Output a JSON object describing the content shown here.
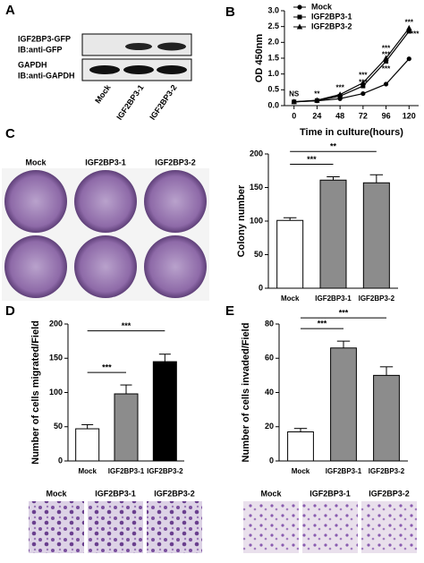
{
  "chart_data": [
    {
      "type": "line",
      "panel": "B",
      "y_label": "OD 450nm",
      "x_label": "Time in culture(hours)",
      "x": [
        0,
        24,
        48,
        72,
        96,
        120
      ],
      "xlim": [
        -10,
        130
      ],
      "xticks": [
        0,
        24,
        48,
        72,
        96,
        120
      ],
      "ylim": [
        0,
        3
      ],
      "yticks": [
        {
          "value": 0,
          "label": "0.0"
        },
        {
          "value": 0.5,
          "label": "0.5"
        },
        {
          "value": 1,
          "label": "1.0"
        },
        {
          "value": 1.5,
          "label": "1.5"
        },
        {
          "value": 2,
          "label": "2.0"
        },
        {
          "value": 2.5,
          "label": "2.5"
        },
        {
          "value": 3,
          "label": "3.0"
        }
      ],
      "legend": "upper-left",
      "series": [
        {
          "name": "Mock",
          "color": "#000000",
          "marker": "circle",
          "values": [
            0.12,
            0.15,
            0.22,
            0.38,
            0.68,
            1.48
          ]
        },
        {
          "name": "IGF2BP3-1",
          "color": "#000000",
          "marker": "square",
          "values": [
            0.12,
            0.16,
            0.3,
            0.62,
            1.4,
            2.35
          ]
        },
        {
          "name": "IGF2BP3-2",
          "color": "#000000",
          "marker": "triangle",
          "values": [
            0.12,
            0.17,
            0.35,
            0.72,
            1.5,
            2.45
          ]
        }
      ],
      "annotations": [
        {
          "text": "NS",
          "x": 0,
          "y": 0.35
        },
        {
          "text": "**",
          "x": 24,
          "y": 0.35
        },
        {
          "text": "***",
          "x": 48,
          "y": 0.55
        },
        {
          "text": "***",
          "x": 72,
          "y": 0.95
        },
        {
          "text": "***",
          "x": 72,
          "y": 0.72
        },
        {
          "text": "***",
          "x": 96,
          "y": 1.8
        },
        {
          "text": "***",
          "x": 96,
          "y": 1.6
        },
        {
          "text": "***",
          "x": 96,
          "y": 1.15
        },
        {
          "text": "***",
          "x": 120,
          "y": 2.62
        },
        {
          "text": "***",
          "x": 126,
          "y": 2.25
        }
      ]
    },
    {
      "type": "bar",
      "panel": "C",
      "y_label": "Colony number",
      "categories": [
        "Mock",
        "IGF2BP3-1",
        "IGF2BP3-2"
      ],
      "values": [
        101,
        161,
        157
      ],
      "errors": [
        4,
        5,
        12
      ],
      "colors": [
        "#ffffff",
        "#8c8c8c",
        "#8c8c8c"
      ],
      "ylim": [
        0,
        200
      ],
      "yticks": [
        0,
        50,
        100,
        150,
        200
      ],
      "significance": [
        {
          "label": "***",
          "between": [
            0,
            1
          ]
        },
        {
          "label": "**",
          "between": [
            0,
            2
          ]
        }
      ]
    },
    {
      "type": "bar",
      "panel": "D",
      "y_label": "Number of cells migrated/Field",
      "categories": [
        "Mock",
        "IGF2BP3-1",
        "IGF2BP3-2"
      ],
      "values": [
        47,
        98,
        145
      ],
      "errors": [
        6,
        13,
        11
      ],
      "colors": [
        "#ffffff",
        "#8c8c8c",
        "#000000"
      ],
      "ylim": [
        0,
        200
      ],
      "yticks": [
        0,
        50,
        100,
        150,
        200
      ],
      "significance": [
        {
          "label": "***",
          "between": [
            0,
            1
          ]
        },
        {
          "label": "***",
          "between": [
            0,
            2
          ]
        }
      ]
    },
    {
      "type": "bar",
      "panel": "E",
      "y_label": "Number of cells invaded/Field",
      "categories": [
        "Mock",
        "IGF2BP3-1",
        "IGF2BP3-2"
      ],
      "values": [
        17,
        66,
        50
      ],
      "errors": [
        2,
        4,
        5
      ],
      "colors": [
        "#ffffff",
        "#8c8c8c",
        "#8c8c8c"
      ],
      "ylim": [
        0,
        80
      ],
      "yticks": [
        0,
        20,
        40,
        60,
        80
      ],
      "significance": [
        {
          "label": "***",
          "between": [
            0,
            1
          ]
        },
        {
          "label": "***",
          "between": [
            0,
            2
          ]
        }
      ]
    }
  ],
  "blot": {
    "panel": "A",
    "rows": [
      [
        "IGF2BP3-GFP",
        "IB:anti-GFP"
      ],
      [
        "GAPDH",
        "IB:anti-GAPDH"
      ]
    ],
    "lanes": [
      "Mock",
      "IGF2BP3-1",
      "IGF2BP3-2"
    ]
  },
  "images": [
    {
      "labels": [
        "Mock",
        "IGF2BP3-1",
        "IGF2BP3-2"
      ]
    },
    {
      "labels": [
        "Mock",
        "IGF2BP3-1",
        "IGF2BP3-2"
      ]
    },
    {
      "labels": [
        "Mock",
        "IGF2BP3-1",
        "IGF2BP3-2"
      ]
    }
  ]
}
